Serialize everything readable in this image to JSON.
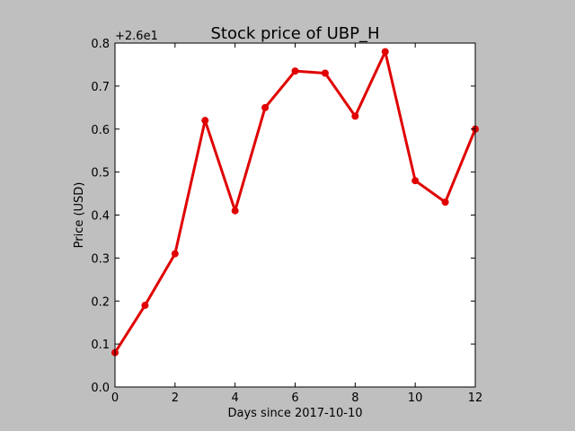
{
  "chart_data": {
    "type": "line",
    "title": "Stock price of UBP_H",
    "xlabel": "Days since 2017-10-10",
    "ylabel": "Price (USD)",
    "y_offset_label": "+2.6e1",
    "xlim": [
      0,
      12
    ],
    "ylim": [
      0.0,
      0.8
    ],
    "x_ticks": [
      0,
      2,
      4,
      6,
      8,
      10,
      12
    ],
    "x_tick_labels": [
      "0",
      "2",
      "4",
      "6",
      "8",
      "10",
      "12"
    ],
    "y_ticks": [
      0.0,
      0.1,
      0.2,
      0.3,
      0.4,
      0.5,
      0.6,
      0.7,
      0.8
    ],
    "y_tick_labels": [
      "0.0",
      "0.1",
      "0.2",
      "0.3",
      "0.4",
      "0.5",
      "0.6",
      "0.7",
      "0.8"
    ],
    "grid": false,
    "series": [
      {
        "color": "#e00000",
        "x": [
          0,
          1,
          2,
          3,
          4,
          5,
          6,
          7,
          8,
          9,
          10,
          11,
          12
        ],
        "y": [
          0.08,
          0.19,
          0.31,
          0.62,
          0.41,
          0.65,
          0.735,
          0.73,
          0.63,
          0.78,
          0.48,
          0.43,
          0.6
        ]
      }
    ]
  }
}
